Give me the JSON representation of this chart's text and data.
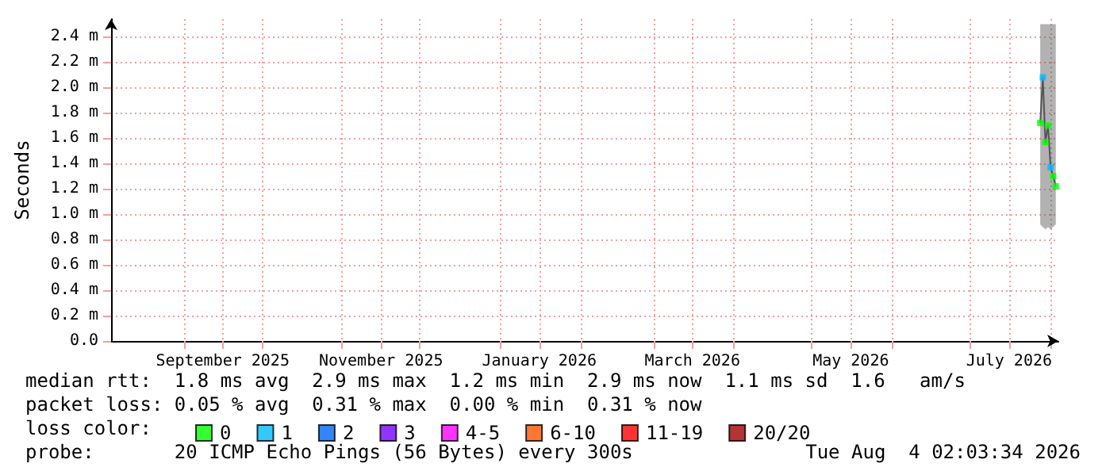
{
  "chart_data": {
    "type": "line",
    "ylabel": "Seconds",
    "x": [
      "2026-07-28",
      "2026-07-29",
      "2026-07-30",
      "2026-07-31",
      "2026-08-01",
      "2026-08-02",
      "2026-08-03"
    ],
    "xlim": [
      "2025-08-04",
      "2026-08-04"
    ],
    "xticks": [
      {
        "value": "2025-09-01",
        "label": null
      },
      {
        "value": "2025-09-16",
        "label": "September 2025"
      },
      {
        "value": "2025-10-01",
        "label": null
      },
      {
        "value": "2025-11-01",
        "label": null
      },
      {
        "value": "2025-11-16",
        "label": "November 2025"
      },
      {
        "value": "2025-12-01",
        "label": null
      },
      {
        "value": "2026-01-01",
        "label": null
      },
      {
        "value": "2026-01-16",
        "label": "January 2026"
      },
      {
        "value": "2026-02-01",
        "label": null
      },
      {
        "value": "2026-03-01",
        "label": null
      },
      {
        "value": "2026-03-16",
        "label": "March 2026"
      },
      {
        "value": "2026-04-01",
        "label": null
      },
      {
        "value": "2026-05-01",
        "label": null
      },
      {
        "value": "2026-05-16",
        "label": "May 2026"
      },
      {
        "value": "2026-06-01",
        "label": null
      },
      {
        "value": "2026-07-01",
        "label": null
      },
      {
        "value": "2026-07-16",
        "label": "July 2026"
      },
      {
        "value": "2026-08-01",
        "label": null
      }
    ],
    "ylim": [
      0,
      2.54
    ],
    "yticks": [
      {
        "value": 0,
        "label": "0.0"
      },
      {
        "value": 0.2,
        "label": "0.2 m"
      },
      {
        "value": 0.4,
        "label": "0.4 m"
      },
      {
        "value": 0.6,
        "label": "0.6 m"
      },
      {
        "value": 0.8,
        "label": "0.8 m"
      },
      {
        "value": 1.0,
        "label": "1.0 m"
      },
      {
        "value": 1.2,
        "label": "1.2 m"
      },
      {
        "value": 1.4,
        "label": "1.4 m"
      },
      {
        "value": 1.6,
        "label": "1.6 m"
      },
      {
        "value": 1.8,
        "label": "1.8 m"
      },
      {
        "value": 2.0,
        "label": "2.0 m"
      },
      {
        "value": 2.2,
        "label": "2.2 m"
      },
      {
        "value": 2.4,
        "label": "2.4 m"
      }
    ],
    "grid": true,
    "legend": "bottom",
    "legend_title": "loss color:",
    "series": [
      {
        "color": "#555555",
        "values": [
          1.72,
          2.08,
          1.57,
          1.7,
          1.37,
          1.3,
          1.22
        ],
        "lower": [
          0.92,
          0.9,
          0.88,
          0.9,
          0.88,
          0.9,
          0.92
        ],
        "upper": [
          2.5,
          2.5,
          2.5,
          2.5,
          2.5,
          2.5,
          2.5
        ]
      },
      {
        "name": "0",
        "type": "scatter",
        "color": "#00ff00",
        "values": [
          1.72,
          null,
          1.57,
          1.7,
          null,
          1.3,
          1.22
        ]
      },
      {
        "name": "1",
        "type": "scatter",
        "color": "#00bbff",
        "values": [
          null,
          2.08,
          null,
          null,
          1.37,
          null,
          null
        ]
      },
      {
        "name": "2",
        "type": "scatter",
        "color": "#0066ff",
        "values": [
          null,
          null,
          null,
          null,
          null,
          null,
          null
        ]
      },
      {
        "name": "3",
        "type": "scatter",
        "color": "#7700ff",
        "values": [
          null,
          null,
          null,
          null,
          null,
          null,
          null
        ]
      },
      {
        "name": "4-5",
        "type": "scatter",
        "color": "#ff00ff",
        "values": [
          null,
          null,
          null,
          null,
          null,
          null,
          null
        ]
      },
      {
        "name": "6-10",
        "type": "scatter",
        "color": "#ff5500",
        "values": [
          null,
          null,
          null,
          null,
          null,
          null,
          null
        ]
      },
      {
        "name": "11-19",
        "type": "scatter",
        "color": "#ff0000",
        "values": [
          null,
          null,
          null,
          null,
          null,
          null,
          null
        ]
      },
      {
        "name": "20/20",
        "type": "scatter",
        "color": "#a10000",
        "values": [
          null,
          null,
          null,
          null,
          null,
          null,
          null
        ]
      }
    ],
    "annotations": [
      "median rtt:  1.8 ms avg  2.9 ms max  1.2 ms min  2.9 ms now  1.1 ms sd  1.6   am/s",
      "packet loss: 0.05 % avg  0.31 % max  0.00 % min  0.31 % now",
      "probe:       20 ICMP Echo Pings (56 Bytes) every 300s",
      "Tue Aug  4 02:03:34 2026"
    ]
  }
}
